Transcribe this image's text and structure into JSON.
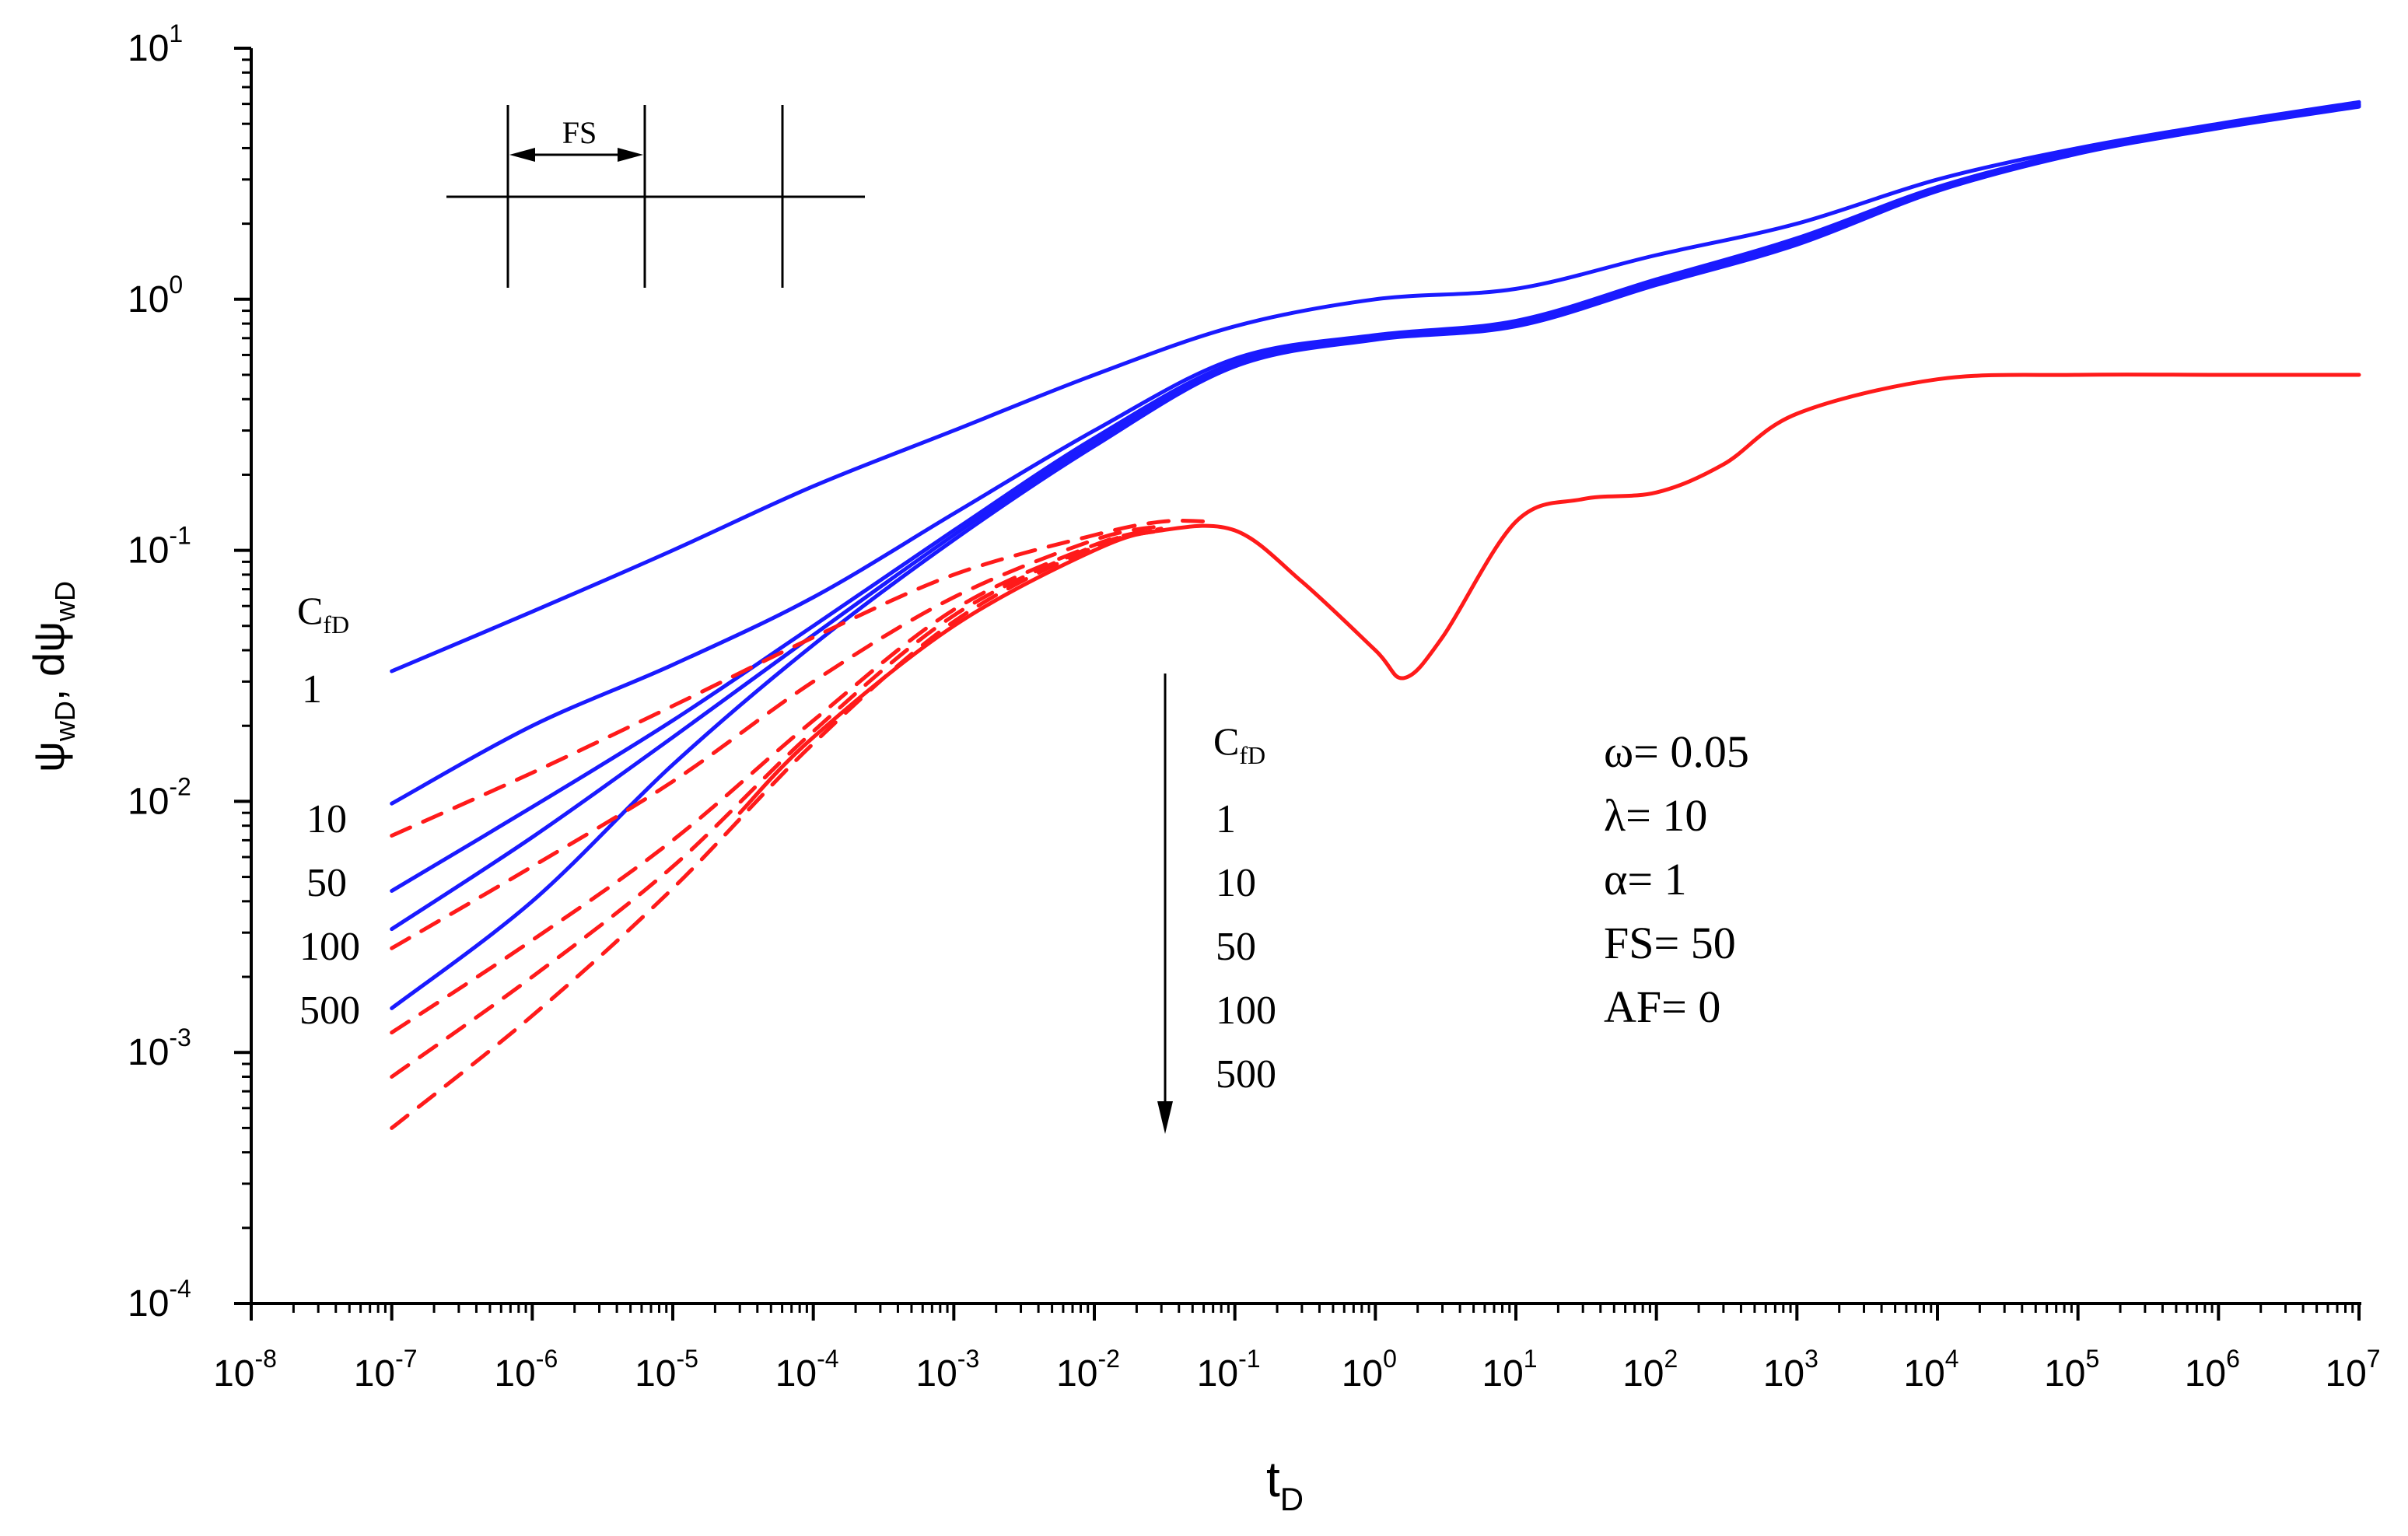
{
  "chart_data": {
    "type": "line",
    "x_scale": "log",
    "y_scale": "log",
    "xlim": [
      1e-08,
      10000000.0
    ],
    "ylim": [
      0.0001,
      10
    ],
    "xlabel": {
      "main": "t",
      "sub": "D"
    },
    "ylabel": {
      "a_main": "ψ",
      "a_sub": "wD",
      "sep": ", ",
      "b_main": "dψ",
      "b_sub": "wD"
    },
    "x_ticks": [
      {
        "base": "10",
        "exp": "-8",
        "value": -8
      },
      {
        "base": "10",
        "exp": "-7",
        "value": -7
      },
      {
        "base": "10",
        "exp": "-6",
        "value": -6
      },
      {
        "base": "10",
        "exp": "-5",
        "value": -5
      },
      {
        "base": "10",
        "exp": "-4",
        "value": -4
      },
      {
        "base": "10",
        "exp": "-3",
        "value": -3
      },
      {
        "base": "10",
        "exp": "-2",
        "value": -2
      },
      {
        "base": "10",
        "exp": "-1",
        "value": -1
      },
      {
        "base": "10",
        "exp": "0",
        "value": 0
      },
      {
        "base": "10",
        "exp": "1",
        "value": 1
      },
      {
        "base": "10",
        "exp": "2",
        "value": 2
      },
      {
        "base": "10",
        "exp": "3",
        "value": 3
      },
      {
        "base": "10",
        "exp": "4",
        "value": 4
      },
      {
        "base": "10",
        "exp": "5",
        "value": 5
      },
      {
        "base": "10",
        "exp": "6",
        "value": 6
      },
      {
        "base": "10",
        "exp": "7",
        "value": 7
      }
    ],
    "y_ticks": [
      {
        "base": "10",
        "exp": "-4",
        "value": -4
      },
      {
        "base": "10",
        "exp": "-3",
        "value": -3
      },
      {
        "base": "10",
        "exp": "-2",
        "value": -2
      },
      {
        "base": "10",
        "exp": "-1",
        "value": -1
      },
      {
        "base": "10",
        "exp": "0",
        "value": 0
      },
      {
        "base": "10",
        "exp": "1",
        "value": 1
      }
    ],
    "colors": {
      "pressure": "#1a1aff",
      "derivative": "#ff1a1a",
      "axis": "#000000"
    },
    "pressure_series": [
      {
        "name": "ψwD, CfD = 1",
        "x": [
          1e-07,
          1e-06,
          1e-05,
          0.0001,
          0.001,
          0.01,
          0.1,
          1,
          10,
          100,
          1000,
          10000.0,
          100000.0,
          1000000.0,
          10000000.0
        ],
        "y": [
          0.033,
          0.057,
          0.1,
          0.18,
          0.3,
          0.5,
          0.78,
          1.0,
          1.1,
          1.5,
          2.0,
          3.0,
          4.0,
          5.0,
          6.1
        ]
      },
      {
        "name": "ψwD, CfD = 10",
        "x": [
          1e-07,
          1e-06,
          1e-05,
          0.0001,
          0.001,
          0.01,
          0.1,
          1,
          10,
          100,
          1000,
          10000.0,
          100000.0,
          1000000.0,
          10000000.0
        ],
        "y": [
          0.0098,
          0.02,
          0.035,
          0.065,
          0.14,
          0.3,
          0.58,
          0.72,
          0.82,
          1.2,
          1.75,
          2.8,
          3.9,
          4.9,
          6.0
        ]
      },
      {
        "name": "ψwD, CfD = 50",
        "x": [
          1e-07,
          1e-06,
          1e-05,
          0.0001,
          0.001,
          0.01,
          0.1,
          1,
          10,
          100,
          1000,
          10000.0,
          100000.0,
          1000000.0,
          10000000.0
        ],
        "y": [
          0.0044,
          0.0095,
          0.021,
          0.05,
          0.12,
          0.28,
          0.56,
          0.71,
          0.8,
          1.18,
          1.7,
          2.75,
          3.85,
          4.85,
          5.95
        ]
      },
      {
        "name": "ψwD, CfD = 100",
        "x": [
          1e-07,
          1e-06,
          1e-05,
          0.0001,
          0.001,
          0.01,
          0.1,
          1,
          10,
          100,
          1000,
          10000.0,
          100000.0,
          1000000.0,
          10000000.0
        ],
        "y": [
          0.0031,
          0.0072,
          0.018,
          0.046,
          0.115,
          0.27,
          0.55,
          0.7,
          0.79,
          1.16,
          1.68,
          2.72,
          3.82,
          4.82,
          5.9
        ]
      },
      {
        "name": "ψwD, CfD = 500",
        "x": [
          1e-07,
          1e-06,
          1e-05,
          0.0001,
          0.001,
          0.01,
          0.1,
          1,
          10,
          100,
          1000,
          10000.0,
          100000.0,
          1000000.0,
          10000000.0
        ],
        "y": [
          0.0015,
          0.004,
          0.014,
          0.042,
          0.11,
          0.26,
          0.54,
          0.69,
          0.78,
          1.14,
          1.65,
          2.7,
          3.8,
          4.8,
          5.85
        ]
      }
    ],
    "derivative_solid": {
      "name": "dψwD (common)",
      "x": [
        3e-05,
        0.0001,
        0.001,
        0.01,
        0.03,
        0.1,
        0.3,
        1,
        1.6,
        3,
        10,
        30,
        100,
        300,
        1000,
        10000.0,
        100000.0,
        1000000.0,
        10000000.0
      ],
      "y": [
        0.009,
        0.018,
        0.05,
        0.1,
        0.12,
        0.12,
        0.075,
        0.04,
        0.031,
        0.045,
        0.13,
        0.16,
        0.17,
        0.22,
        0.35,
        0.48,
        0.5,
        0.5,
        0.5
      ]
    },
    "derivative_dashed": [
      {
        "name": "dψwD, CfD = 1",
        "x": [
          1e-07,
          1e-06,
          1e-05,
          0.0001,
          0.001,
          0.01,
          0.03,
          0.07
        ],
        "y": [
          0.0073,
          0.013,
          0.024,
          0.045,
          0.08,
          0.115,
          0.13,
          0.13
        ]
      },
      {
        "name": "dψwD, CfD = 10",
        "x": [
          1e-07,
          1e-06,
          1e-05,
          0.0001,
          0.001,
          0.01,
          0.03
        ],
        "y": [
          0.0026,
          0.0055,
          0.012,
          0.03,
          0.065,
          0.11,
          0.125
        ]
      },
      {
        "name": "dψwD, CfD = 50",
        "x": [
          1e-07,
          1e-06,
          1e-05,
          0.0001,
          0.001,
          0.01,
          0.03
        ],
        "y": [
          0.0012,
          0.0028,
          0.007,
          0.021,
          0.058,
          0.105,
          0.122
        ]
      },
      {
        "name": "dψwD, CfD = 100",
        "x": [
          1e-07,
          1e-06,
          1e-05,
          0.0001,
          0.001,
          0.01,
          0.03
        ],
        "y": [
          0.0008,
          0.002,
          0.0055,
          0.019,
          0.055,
          0.104,
          0.121
        ]
      },
      {
        "name": "dψwD, CfD = 500",
        "x": [
          1e-07,
          1e-06,
          1e-05,
          0.0001,
          0.001,
          0.01,
          0.03
        ],
        "y": [
          0.0005,
          0.0014,
          0.0045,
          0.017,
          0.052,
          0.103,
          0.12
        ]
      }
    ],
    "left_labels": {
      "header_main": "C",
      "header_sub": "fD",
      "values": [
        "1",
        "10",
        "50",
        "100",
        "500"
      ]
    },
    "arrow_legend": {
      "header_main": "C",
      "header_sub": "fD",
      "values": [
        "1",
        "10",
        "50",
        "100",
        "500"
      ]
    },
    "parameters": [
      "ω= 0.05",
      "λ= 10",
      "α= 1",
      "FS= 50",
      "AF= 0"
    ],
    "inset": {
      "label": "FS"
    }
  }
}
